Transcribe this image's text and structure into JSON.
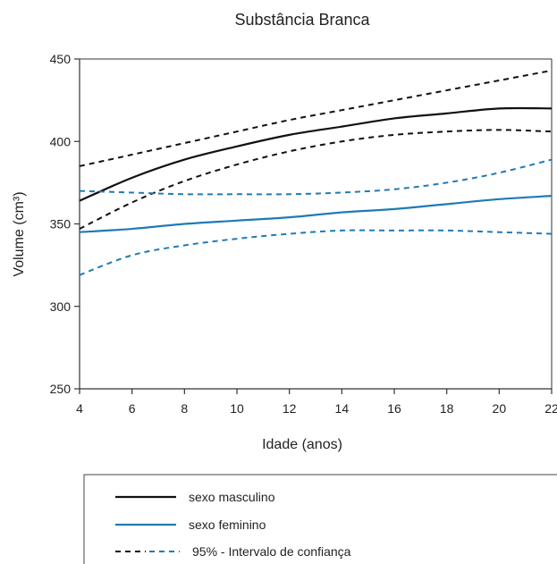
{
  "chart_data": {
    "type": "line",
    "title": "Substância Branca",
    "xlabel": "Idade (anos)",
    "ylabel": "Volume (cm³)",
    "xlim": [
      4,
      22
    ],
    "ylim": [
      250,
      450
    ],
    "xticks": [
      4,
      6,
      8,
      10,
      12,
      14,
      16,
      18,
      20,
      22
    ],
    "yticks": [
      250,
      300,
      350,
      400,
      450
    ],
    "grid": false,
    "legend_position": "bottom",
    "colors": {
      "male": "#111111",
      "female": "#1f7bb6",
      "ci_male": "#111111",
      "ci_female": "#1f7bb6"
    },
    "series": [
      {
        "key": "male_mean",
        "style": "solid",
        "color": "#111111",
        "x": [
          4,
          6,
          8,
          10,
          12,
          14,
          16,
          18,
          20,
          22
        ],
        "y": [
          364,
          378,
          389,
          397,
          404,
          409,
          414,
          417,
          420,
          420
        ]
      },
      {
        "key": "male_ci_upper",
        "style": "dashed",
        "color": "#111111",
        "x": [
          4,
          6,
          8,
          10,
          12,
          14,
          16,
          18,
          20,
          22
        ],
        "y": [
          385,
          392,
          399,
          406,
          413,
          419,
          425,
          431,
          437,
          443
        ]
      },
      {
        "key": "male_ci_lower",
        "style": "dashed",
        "color": "#111111",
        "x": [
          4,
          6,
          8,
          10,
          12,
          14,
          16,
          18,
          20,
          22
        ],
        "y": [
          347,
          363,
          376,
          386,
          394,
          400,
          404,
          406,
          407,
          406
        ]
      },
      {
        "key": "female_mean",
        "style": "solid",
        "color": "#1f7bb6",
        "x": [
          4,
          6,
          8,
          10,
          12,
          14,
          16,
          18,
          20,
          22
        ],
        "y": [
          345,
          347,
          350,
          352,
          354,
          357,
          359,
          362,
          365,
          367
        ]
      },
      {
        "key": "female_ci_upper",
        "style": "dashed",
        "color": "#1f7bb6",
        "x": [
          4,
          6,
          8,
          10,
          12,
          14,
          16,
          18,
          20,
          22
        ],
        "y": [
          370,
          369,
          368,
          368,
          368,
          369,
          371,
          375,
          381,
          389
        ]
      },
      {
        "key": "female_ci_lower",
        "style": "dashed",
        "color": "#1f7bb6",
        "x": [
          4,
          6,
          8,
          10,
          12,
          14,
          16,
          18,
          20,
          22
        ],
        "y": [
          319,
          331,
          337,
          341,
          344,
          346,
          346,
          346,
          345,
          344
        ]
      }
    ],
    "legend": [
      {
        "label": "sexo masculino",
        "style": "solid",
        "color": "#111111"
      },
      {
        "label": "sexo feminino",
        "style": "solid",
        "color": "#1f7bb6"
      },
      {
        "label": "95% - Intervalo de confiança",
        "style": "dashed-pair",
        "colors": [
          "#111111",
          "#1f7bb6"
        ]
      }
    ]
  }
}
